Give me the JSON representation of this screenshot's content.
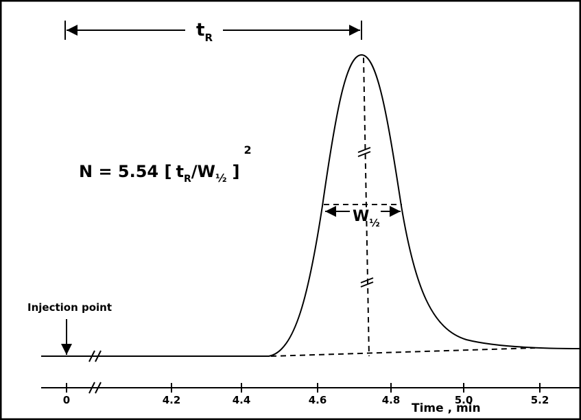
{
  "retention": {
    "symbol": "t",
    "subscript": "R"
  },
  "formula": {
    "lhs": "N = 5.54 [",
    "t": "t",
    "t_sub": "R",
    "slash": "/",
    "w": "W",
    "w_sub": "½",
    "close": "]",
    "exponent": "2"
  },
  "half_width": {
    "symbol": "W",
    "subscript": "½"
  },
  "injection": {
    "label": "Injection point"
  },
  "axis": {
    "ticks": [
      "0",
      "4.2",
      "4.4",
      "4.6",
      "4.8",
      "5.0",
      "5.2"
    ],
    "title": "Time , min"
  }
}
